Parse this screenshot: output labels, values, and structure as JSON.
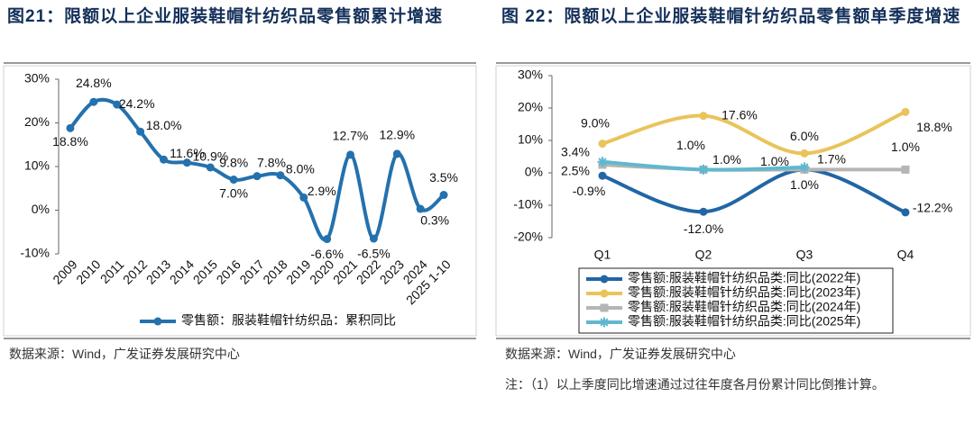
{
  "chart_data": [
    {
      "type": "line",
      "title": "图21：限额以上企业服装鞋帽针纺织品零售额累计增速",
      "source": "数据来源：Wind，广发证券发展研究中心",
      "categories": [
        "2009",
        "2010",
        "2011",
        "2012",
        "2013",
        "2014",
        "2015",
        "2016",
        "2017",
        "2018",
        "2019",
        "2020",
        "2021",
        "2022",
        "2023",
        "2024",
        "2025 1-10"
      ],
      "series": [
        {
          "name": "零售额：服装鞋帽针纺织品：累积同比",
          "color": "#2471ad",
          "marker": "circle",
          "values": [
            18.8,
            24.8,
            24.2,
            18.0,
            11.6,
            10.9,
            9.8,
            7.0,
            7.8,
            8.0,
            2.9,
            -6.6,
            12.7,
            -6.5,
            12.9,
            0.3,
            3.5
          ],
          "value_labels": [
            "18.8%",
            "24.8%",
            "24.2%",
            "18.0%",
            "11.6%",
            "10.9%",
            "9.8%",
            "7.0%",
            "7.8%",
            "8.0%",
            "2.9%",
            "-6.6%",
            "12.7%",
            "-6.5%",
            "12.9%",
            "0.3%",
            "3.5%"
          ]
        }
      ],
      "ylim": [
        -10,
        30
      ],
      "yticks": [
        {
          "value": -10,
          "label": "-10%"
        },
        {
          "value": 0,
          "label": "0%"
        },
        {
          "value": 10,
          "label": "10%"
        },
        {
          "value": 20,
          "label": "20%"
        },
        {
          "value": 30,
          "label": "30%"
        }
      ],
      "smooth": true,
      "grid": false,
      "legend": "bottom"
    },
    {
      "type": "line",
      "title": "图 22：限额以上企业服装鞋帽针纺织品零售额单季度增速",
      "source": "数据来源：Wind，广发证券发展研究中心",
      "note": "注：（1）以上季度同比增速通过过往年度各月份累计同比倒推计算。",
      "categories": [
        "Q1",
        "Q2",
        "Q3",
        "Q4"
      ],
      "series": [
        {
          "name": "零售额:服装鞋帽针纺织品类:同比(2022年)",
          "color": "#2166a5",
          "marker": "circle",
          "values": [
            -0.9,
            -12.0,
            1.0,
            -12.2
          ],
          "value_labels": [
            "-0.9%",
            "-12.0%",
            "1.0%",
            "-12.2%"
          ]
        },
        {
          "name": "零售额:服装鞋帽针纺织品类:同比(2023年)",
          "color": "#e9c45a",
          "marker": "circle",
          "values": [
            9.0,
            17.6,
            6.0,
            18.8
          ],
          "value_labels": [
            "9.0%",
            "17.6%",
            "6.0%",
            "18.8%"
          ]
        },
        {
          "name": "零售额:服装鞋帽针纺织品类:同比(2024年)",
          "color": "#b5b5b5",
          "marker": "square",
          "values": [
            2.5,
            1.0,
            1.0,
            1.0
          ],
          "value_labels": [
            "2.5%",
            "1.0%",
            "1.0%",
            "1.0%"
          ]
        },
        {
          "name": "零售额:服装鞋帽针纺织品类:同比(2025年)",
          "color": "#5fb8d0",
          "marker": "star",
          "values": [
            3.4,
            1.0,
            1.7,
            null
          ],
          "value_labels": [
            "3.4%",
            "1.0%",
            "1.7%",
            null
          ]
        }
      ],
      "ylim": [
        -20,
        30
      ],
      "yticks": [
        {
          "value": -20,
          "label": "-20%"
        },
        {
          "value": -10,
          "label": "-10%"
        },
        {
          "value": 0,
          "label": "0%"
        },
        {
          "value": 10,
          "label": "10%"
        },
        {
          "value": 20,
          "label": "20%"
        },
        {
          "value": 30,
          "label": "30%"
        }
      ],
      "smooth": true,
      "grid": false,
      "legend": "bottom"
    }
  ]
}
